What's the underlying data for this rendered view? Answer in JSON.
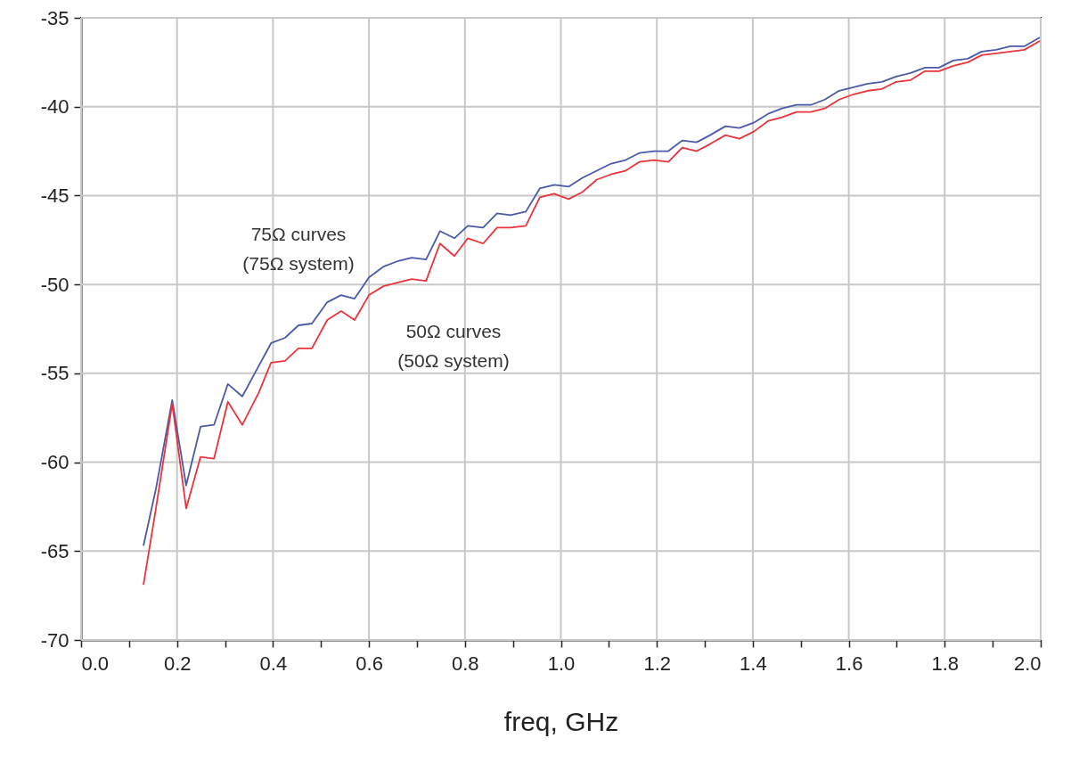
{
  "chart_data": {
    "type": "line",
    "xlabel": "freq, GHz",
    "xlim": [
      0,
      2
    ],
    "ylim": [
      -70,
      -35
    ],
    "xticks": [
      {
        "value": 0,
        "label": "0.0"
      },
      {
        "value": 0.1,
        "label": null
      },
      {
        "value": 0.2,
        "label": "0.2"
      },
      {
        "value": 0.3,
        "label": null
      },
      {
        "value": 0.4,
        "label": "0.4"
      },
      {
        "value": 0.5,
        "label": null
      },
      {
        "value": 0.6,
        "label": "0.6"
      },
      {
        "value": 0.7,
        "label": null
      },
      {
        "value": 0.8,
        "label": "0.8"
      },
      {
        "value": 0.9,
        "label": null
      },
      {
        "value": 1,
        "label": "1.0"
      },
      {
        "value": 1.1,
        "label": null
      },
      {
        "value": 1.2,
        "label": "1.2"
      },
      {
        "value": 1.3,
        "label": null
      },
      {
        "value": 1.4,
        "label": "1.4"
      },
      {
        "value": 1.5,
        "label": null
      },
      {
        "value": 1.6,
        "label": "1.6"
      },
      {
        "value": 1.7,
        "label": null
      },
      {
        "value": 1.8,
        "label": "1.8"
      },
      {
        "value": 1.9,
        "label": null
      },
      {
        "value": 2,
        "label": "2.0"
      }
    ],
    "yticks": [
      -70,
      -65,
      -60,
      -55,
      -50,
      -45,
      -40,
      -35
    ],
    "grid": true,
    "x": [
      0.13,
      0.156,
      0.19,
      0.219,
      0.249,
      0.277,
      0.306,
      0.336,
      0.37,
      0.396,
      0.425,
      0.453,
      0.481,
      0.513,
      0.542,
      0.57,
      0.6,
      0.63,
      0.659,
      0.689,
      0.719,
      0.748,
      0.778,
      0.806,
      0.838,
      0.867,
      0.895,
      0.927,
      0.956,
      0.986,
      1.016,
      1.045,
      1.075,
      1.105,
      1.135,
      1.164,
      1.194,
      1.224,
      1.253,
      1.283,
      1.311,
      1.343,
      1.372,
      1.402,
      1.432,
      1.461,
      1.491,
      1.521,
      1.55,
      1.58,
      1.61,
      1.64,
      1.669,
      1.699,
      1.729,
      1.759,
      1.788,
      1.818,
      1.848,
      1.877,
      1.907,
      1.937,
      1.966,
      1.998
    ],
    "series": [
      {
        "color": "#4a5aa8",
        "values": [
          -64.7,
          -61.5,
          -56.5,
          -61.3,
          -58.0,
          -57.9,
          -55.6,
          -56.3,
          -54.6,
          -53.3,
          -53.0,
          -52.3,
          -52.2,
          -51.0,
          -50.6,
          -50.8,
          -49.6,
          -49.0,
          -48.7,
          -48.5,
          -48.6,
          -47.0,
          -47.4,
          -46.7,
          -46.8,
          -46.0,
          -46.1,
          -45.9,
          -44.6,
          -44.4,
          -44.5,
          -44.0,
          -43.6,
          -43.2,
          -43.0,
          -42.6,
          -42.5,
          -42.5,
          -41.9,
          -42.0,
          -41.6,
          -41.1,
          -41.2,
          -40.9,
          -40.4,
          -40.1,
          -39.9,
          -39.9,
          -39.6,
          -39.1,
          -38.9,
          -38.7,
          -38.6,
          -38.3,
          -38.1,
          -37.8,
          -37.8,
          -37.4,
          -37.3,
          -36.9,
          -36.8,
          -36.6,
          -36.6,
          -36.1
        ]
      },
      {
        "color": "#e8343c",
        "values": [
          -66.9,
          -62.6,
          -56.7,
          -62.6,
          -59.7,
          -59.8,
          -56.6,
          -57.9,
          -56.1,
          -54.4,
          -54.3,
          -53.6,
          -53.6,
          -52.0,
          -51.5,
          -52.0,
          -50.6,
          -50.1,
          -49.9,
          -49.7,
          -49.8,
          -47.7,
          -48.4,
          -47.4,
          -47.7,
          -46.8,
          -46.8,
          -46.7,
          -45.1,
          -44.9,
          -45.2,
          -44.8,
          -44.1,
          -43.8,
          -43.6,
          -43.1,
          -43.0,
          -43.1,
          -42.3,
          -42.5,
          -42.1,
          -41.6,
          -41.8,
          -41.4,
          -40.8,
          -40.6,
          -40.3,
          -40.3,
          -40.1,
          -39.6,
          -39.3,
          -39.1,
          -39.0,
          -38.6,
          -38.5,
          -38.0,
          -38.0,
          -37.7,
          -37.5,
          -37.1,
          -37.0,
          -36.9,
          -36.8,
          -36.3
        ]
      }
    ],
    "annotations": [
      "75Ω curves\n(75Ω system)",
      "50Ω curves\n(50Ω system)"
    ]
  }
}
